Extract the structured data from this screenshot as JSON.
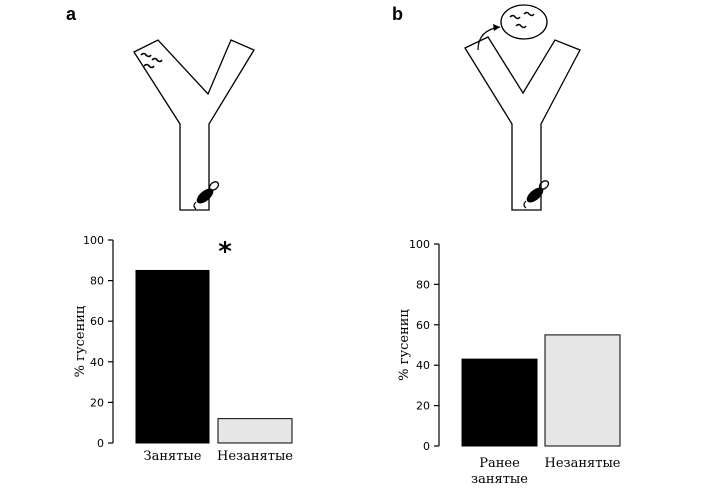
{
  "panels": [
    {
      "letter": "a"
    },
    {
      "letter": "b"
    }
  ],
  "chart_data": [
    {
      "type": "bar",
      "categories": [
        "Занятые",
        "Незанятые"
      ],
      "values": [
        85,
        12
      ],
      "colors": [
        "#000000",
        "#e6e6e6"
      ],
      "ylabel": "% гусениц",
      "ylim": [
        0,
        100
      ],
      "yticks": [
        "0",
        "20",
        "40",
        "60",
        "80",
        "100"
      ],
      "significance": "*",
      "grid": false
    },
    {
      "type": "bar",
      "categories": [
        "Ранее занятые",
        "Незанятые"
      ],
      "category_lines": [
        [
          "Ранее",
          "занятые"
        ],
        [
          "Незанятые"
        ]
      ],
      "values": [
        43,
        55
      ],
      "colors": [
        "#000000",
        "#e6e6e6"
      ],
      "ylabel": "% гусениц",
      "ylim": [
        0,
        100
      ],
      "yticks": [
        "0",
        "20",
        "40",
        "60",
        "80",
        "100"
      ],
      "grid": false
    }
  ]
}
